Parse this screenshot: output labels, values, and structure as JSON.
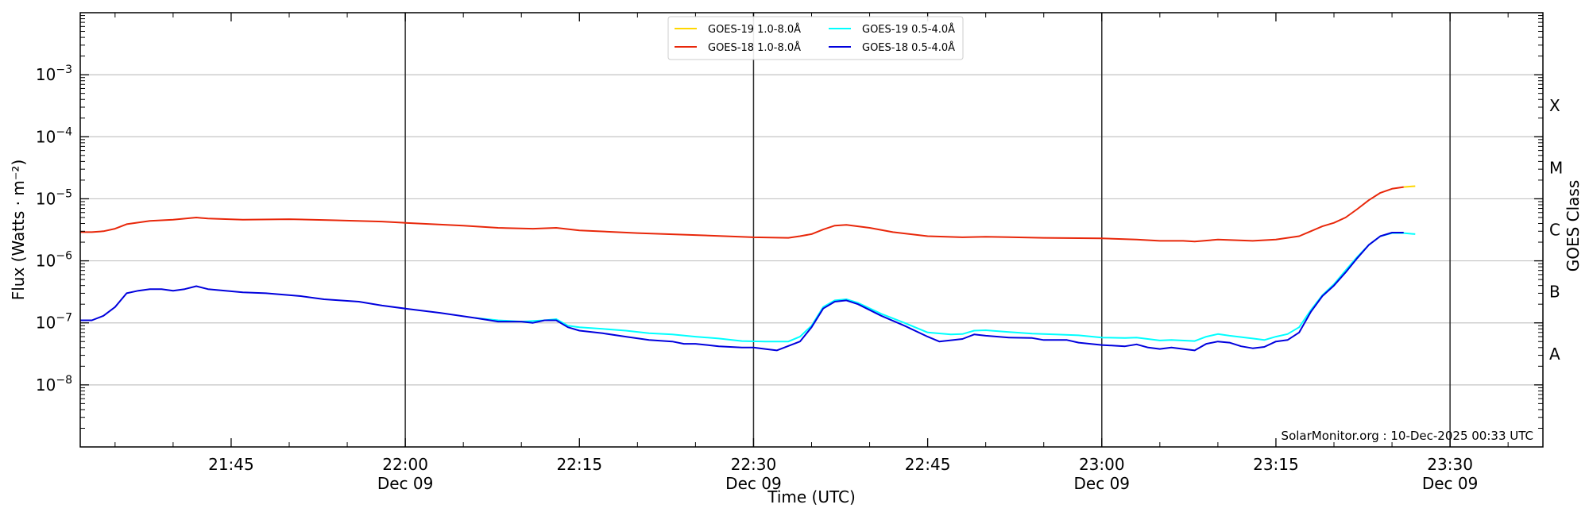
{
  "chart_data": {
    "type": "line",
    "xlabel": "Time (UTC)",
    "ylabel": "Flux (Watts · m⁻²)",
    "y2label": "GOES Class",
    "yscale": "log",
    "ylim": [
      1e-09,
      0.01
    ],
    "xlim": [
      "21:32",
      "23:38"
    ],
    "grid": "horizontal at decades",
    "legend_position": "top-center",
    "credit": "SolarMonitor.org : 10-Dec-2025 00:33 UTC",
    "y_ticks": [
      {
        "value": 1e-08,
        "mant": "10",
        "exp": "−8"
      },
      {
        "value": 1e-07,
        "mant": "10",
        "exp": "−7"
      },
      {
        "value": 1e-06,
        "mant": "10",
        "exp": "−6"
      },
      {
        "value": 1e-05,
        "mant": "10",
        "exp": "−5"
      },
      {
        "value": 0.0001,
        "mant": "10",
        "exp": "−4"
      },
      {
        "value": 0.001,
        "mant": "10",
        "exp": "−3"
      }
    ],
    "x_ticks": [
      {
        "t": "21:45",
        "label": "21:45",
        "sub": ""
      },
      {
        "t": "22:00",
        "label": "22:00",
        "sub": "Dec 09"
      },
      {
        "t": "22:15",
        "label": "22:15",
        "sub": ""
      },
      {
        "t": "22:30",
        "label": "22:30",
        "sub": "Dec 09"
      },
      {
        "t": "22:45",
        "label": "22:45",
        "sub": ""
      },
      {
        "t": "23:00",
        "label": "23:00",
        "sub": "Dec 09"
      },
      {
        "t": "23:15",
        "label": "23:15",
        "sub": ""
      },
      {
        "t": "23:30",
        "label": "23:30",
        "sub": "Dec 09"
      }
    ],
    "vlines": [
      "22:00",
      "22:30",
      "23:00",
      "23:30"
    ],
    "goes_classes": [
      {
        "label": "A",
        "value": 3.16e-08
      },
      {
        "label": "B",
        "value": 3.16e-07
      },
      {
        "label": "C",
        "value": 3.16e-06
      },
      {
        "label": "M",
        "value": 3.16e-05
      },
      {
        "label": "X",
        "value": 0.000316
      }
    ],
    "series": [
      {
        "name": "GOES-19 1.0-8.0Å",
        "color": "#ffd700",
        "points": [
          [
            "23:26",
            1.55e-05
          ],
          [
            "23:27",
            1.6e-05
          ]
        ]
      },
      {
        "name": "GOES-19 0.5-4.0Å",
        "color": "#00ffff",
        "points": [
          [
            "22:06",
            1.2e-07
          ],
          [
            "22:08",
            1.1e-07
          ],
          [
            "22:10",
            1.05e-07
          ],
          [
            "22:12",
            1.1e-07
          ],
          [
            "22:13",
            1.15e-07
          ],
          [
            "22:14",
            9e-08
          ],
          [
            "22:15",
            8.5e-08
          ],
          [
            "22:17",
            8e-08
          ],
          [
            "22:19",
            7.5e-08
          ],
          [
            "22:21",
            6.8e-08
          ],
          [
            "22:23",
            6.5e-08
          ],
          [
            "22:25",
            6e-08
          ],
          [
            "22:27",
            5.6e-08
          ],
          [
            "22:29",
            5.1e-08
          ],
          [
            "22:31",
            5e-08
          ],
          [
            "22:33",
            5e-08
          ],
          [
            "22:34",
            6e-08
          ],
          [
            "22:35",
            9e-08
          ],
          [
            "22:36",
            1.8e-07
          ],
          [
            "22:37",
            2.3e-07
          ],
          [
            "22:38",
            2.4e-07
          ],
          [
            "22:39",
            2.1e-07
          ],
          [
            "22:41",
            1.4e-07
          ],
          [
            "22:43",
            1e-07
          ],
          [
            "22:45",
            7e-08
          ],
          [
            "22:47",
            6.5e-08
          ],
          [
            "22:48",
            6.6e-08
          ],
          [
            "22:49",
            7.5e-08
          ],
          [
            "22:50",
            7.6e-08
          ],
          [
            "22:52",
            7.1e-08
          ],
          [
            "22:54",
            6.7e-08
          ],
          [
            "22:56",
            6.5e-08
          ],
          [
            "22:58",
            6.3e-08
          ],
          [
            "23:00",
            5.8e-08
          ],
          [
            "23:02",
            5.7e-08
          ],
          [
            "23:03",
            5.8e-08
          ],
          [
            "23:05",
            5.2e-08
          ],
          [
            "23:06",
            5.3e-08
          ],
          [
            "23:08",
            5.1e-08
          ],
          [
            "23:09",
            6e-08
          ],
          [
            "23:10",
            6.6e-08
          ],
          [
            "23:11",
            6.2e-08
          ],
          [
            "23:13",
            5.6e-08
          ],
          [
            "23:14",
            5.3e-08
          ],
          [
            "23:15",
            6e-08
          ],
          [
            "23:16",
            6.6e-08
          ],
          [
            "23:17",
            8.5e-08
          ],
          [
            "23:18",
            1.6e-07
          ],
          [
            "23:19",
            2.8e-07
          ],
          [
            "23:20",
            4.2e-07
          ],
          [
            "23:21",
            7e-07
          ],
          [
            "23:22",
            1.15e-06
          ],
          [
            "23:23",
            1.8e-06
          ],
          [
            "23:24",
            2.5e-06
          ],
          [
            "23:25",
            2.8e-06
          ],
          [
            "23:26",
            2.8e-06
          ],
          [
            "23:27",
            2.7e-06
          ]
        ]
      },
      {
        "name": "GOES-18 1.0-8.0Å",
        "color": "#e8270a",
        "points": [
          [
            "21:32",
            2.9e-06
          ],
          [
            "21:33",
            2.9e-06
          ],
          [
            "21:34",
            3e-06
          ],
          [
            "21:35",
            3.3e-06
          ],
          [
            "21:36",
            3.9e-06
          ],
          [
            "21:38",
            4.4e-06
          ],
          [
            "21:40",
            4.6e-06
          ],
          [
            "21:42",
            5e-06
          ],
          [
            "21:43",
            4.8e-06
          ],
          [
            "21:46",
            4.6e-06
          ],
          [
            "21:50",
            4.7e-06
          ],
          [
            "21:54",
            4.5e-06
          ],
          [
            "21:58",
            4.3e-06
          ],
          [
            "22:00",
            4.1e-06
          ],
          [
            "22:05",
            3.7e-06
          ],
          [
            "22:08",
            3.4e-06
          ],
          [
            "22:11",
            3.3e-06
          ],
          [
            "22:13",
            3.4e-06
          ],
          [
            "22:15",
            3.1e-06
          ],
          [
            "22:20",
            2.8e-06
          ],
          [
            "22:25",
            2.6e-06
          ],
          [
            "22:30",
            2.4e-06
          ],
          [
            "22:33",
            2.35e-06
          ],
          [
            "22:34",
            2.5e-06
          ],
          [
            "22:35",
            2.7e-06
          ],
          [
            "22:36",
            3.2e-06
          ],
          [
            "22:37",
            3.7e-06
          ],
          [
            "22:38",
            3.8e-06
          ],
          [
            "22:40",
            3.4e-06
          ],
          [
            "22:42",
            2.9e-06
          ],
          [
            "22:45",
            2.5e-06
          ],
          [
            "22:48",
            2.4e-06
          ],
          [
            "22:50",
            2.45e-06
          ],
          [
            "22:55",
            2.35e-06
          ],
          [
            "23:00",
            2.3e-06
          ],
          [
            "23:03",
            2.2e-06
          ],
          [
            "23:05",
            2.1e-06
          ],
          [
            "23:07",
            2.1e-06
          ],
          [
            "23:08",
            2.05e-06
          ],
          [
            "23:10",
            2.2e-06
          ],
          [
            "23:13",
            2.1e-06
          ],
          [
            "23:15",
            2.2e-06
          ],
          [
            "23:17",
            2.5e-06
          ],
          [
            "23:18",
            3e-06
          ],
          [
            "23:19",
            3.6e-06
          ],
          [
            "23:20",
            4.1e-06
          ],
          [
            "23:21",
            5e-06
          ],
          [
            "23:22",
            6.8e-06
          ],
          [
            "23:23",
            9.5e-06
          ],
          [
            "23:24",
            1.25e-05
          ],
          [
            "23:25",
            1.45e-05
          ],
          [
            "23:26",
            1.55e-05
          ]
        ]
      },
      {
        "name": "GOES-18 0.5-4.0Å",
        "color": "#0000dd",
        "points": [
          [
            "21:32",
            1.1e-07
          ],
          [
            "21:33",
            1.1e-07
          ],
          [
            "21:34",
            1.3e-07
          ],
          [
            "21:35",
            1.8e-07
          ],
          [
            "21:36",
            3e-07
          ],
          [
            "21:37",
            3.3e-07
          ],
          [
            "21:38",
            3.5e-07
          ],
          [
            "21:39",
            3.5e-07
          ],
          [
            "21:40",
            3.3e-07
          ],
          [
            "21:41",
            3.5e-07
          ],
          [
            "21:42",
            3.9e-07
          ],
          [
            "21:43",
            3.5e-07
          ],
          [
            "21:46",
            3.1e-07
          ],
          [
            "21:48",
            3e-07
          ],
          [
            "21:51",
            2.7e-07
          ],
          [
            "21:53",
            2.4e-07
          ],
          [
            "21:56",
            2.2e-07
          ],
          [
            "21:58",
            1.9e-07
          ],
          [
            "22:00",
            1.7e-07
          ],
          [
            "22:03",
            1.45e-07
          ],
          [
            "22:06",
            1.2e-07
          ],
          [
            "22:08",
            1.05e-07
          ],
          [
            "22:10",
            1.05e-07
          ],
          [
            "22:11",
            1e-07
          ],
          [
            "22:12",
            1.1e-07
          ],
          [
            "22:13",
            1.1e-07
          ],
          [
            "22:14",
            8.5e-08
          ],
          [
            "22:15",
            7.5e-08
          ],
          [
            "22:17",
            6.8e-08
          ],
          [
            "22:19",
            6e-08
          ],
          [
            "22:21",
            5.3e-08
          ],
          [
            "22:23",
            5e-08
          ],
          [
            "22:24",
            4.6e-08
          ],
          [
            "22:25",
            4.6e-08
          ],
          [
            "22:27",
            4.2e-08
          ],
          [
            "22:29",
            4e-08
          ],
          [
            "22:30",
            4e-08
          ],
          [
            "22:31",
            3.8e-08
          ],
          [
            "22:32",
            3.6e-08
          ],
          [
            "22:34",
            5e-08
          ],
          [
            "22:35",
            8.5e-08
          ],
          [
            "22:36",
            1.7e-07
          ],
          [
            "22:37",
            2.2e-07
          ],
          [
            "22:38",
            2.3e-07
          ],
          [
            "22:39",
            2e-07
          ],
          [
            "22:41",
            1.3e-07
          ],
          [
            "22:43",
            9e-08
          ],
          [
            "22:45",
            6e-08
          ],
          [
            "22:46",
            5e-08
          ],
          [
            "22:48",
            5.5e-08
          ],
          [
            "22:49",
            6.5e-08
          ],
          [
            "22:50",
            6.2e-08
          ],
          [
            "22:52",
            5.8e-08
          ],
          [
            "22:54",
            5.7e-08
          ],
          [
            "22:55",
            5.3e-08
          ],
          [
            "22:57",
            5.3e-08
          ],
          [
            "22:58",
            4.8e-08
          ],
          [
            "23:00",
            4.4e-08
          ],
          [
            "23:02",
            4.2e-08
          ],
          [
            "23:03",
            4.5e-08
          ],
          [
            "23:04",
            4e-08
          ],
          [
            "23:05",
            3.8e-08
          ],
          [
            "23:06",
            4e-08
          ],
          [
            "23:07",
            3.8e-08
          ],
          [
            "23:08",
            3.6e-08
          ],
          [
            "23:09",
            4.6e-08
          ],
          [
            "23:10",
            5e-08
          ],
          [
            "23:11",
            4.8e-08
          ],
          [
            "23:12",
            4.2e-08
          ],
          [
            "23:13",
            3.9e-08
          ],
          [
            "23:14",
            4.1e-08
          ],
          [
            "23:15",
            5e-08
          ],
          [
            "23:16",
            5.3e-08
          ],
          [
            "23:17",
            7e-08
          ],
          [
            "23:18",
            1.5e-07
          ],
          [
            "23:19",
            2.7e-07
          ],
          [
            "23:20",
            4e-07
          ],
          [
            "23:21",
            6.5e-07
          ],
          [
            "23:22",
            1.1e-06
          ],
          [
            "23:23",
            1.8e-06
          ],
          [
            "23:24",
            2.5e-06
          ],
          [
            "23:25",
            2.85e-06
          ],
          [
            "23:26",
            2.85e-06
          ]
        ]
      }
    ],
    "legend_order": [
      0,
      2,
      1,
      3
    ]
  }
}
